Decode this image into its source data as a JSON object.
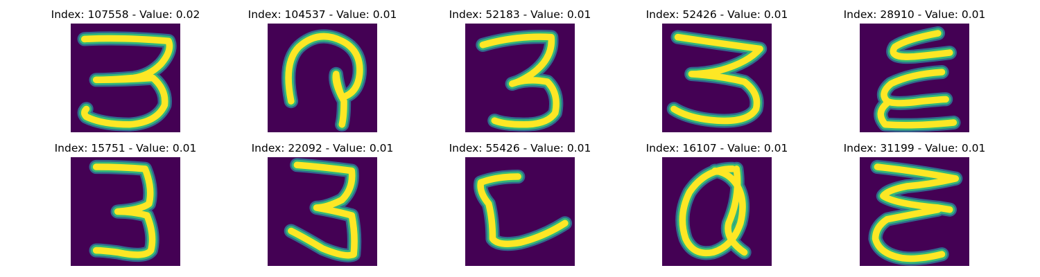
{
  "colors": {
    "background": "#440154",
    "stroke_core": "#fde725",
    "stroke_edge": "#35b779",
    "stroke_halo": "#31688e"
  },
  "panels": [
    {
      "title": "Index: 107558 - Value: 0.02",
      "glyph": "3"
    },
    {
      "title": "Index: 104537 - Value: 0.01",
      "glyph": "loop"
    },
    {
      "title": "Index: 52183 - Value: 0.01",
      "glyph": "3"
    },
    {
      "title": "Index: 52426 - Value: 0.01",
      "glyph": "3"
    },
    {
      "title": "Index: 28910 - Value: 0.01",
      "glyph": "E-reversed"
    },
    {
      "title": "Index: 15751 - Value: 0.01",
      "glyph": "3"
    },
    {
      "title": "Index: 22092 - Value: 0.01",
      "glyph": "3"
    },
    {
      "title": "Index: 55426 - Value: 0.01",
      "glyph": "L"
    },
    {
      "title": "Index: 16107 - Value: 0.01",
      "glyph": "a"
    },
    {
      "title": "Index: 31199 - Value: 0.01",
      "glyph": "E-reversed"
    }
  ]
}
